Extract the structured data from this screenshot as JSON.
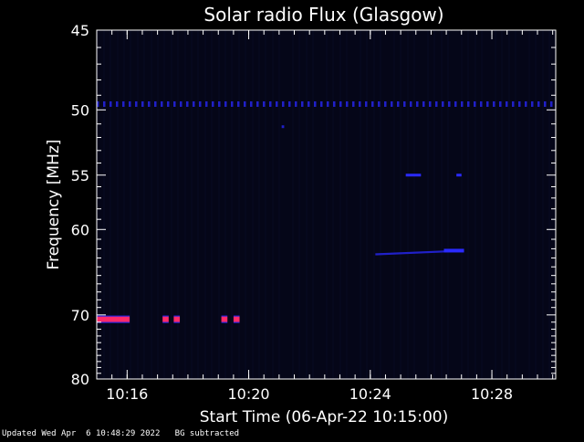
{
  "chart_data": {
    "type": "heatmap",
    "title": "Solar radio Flux (Glasgow)",
    "xlabel": "Start Time (06-Apr-22 10:15:00)",
    "ylabel": "Frequency [MHz]",
    "x_unit": "time (HH:MM)",
    "xlim": [
      "10:15:00",
      "10:30:06"
    ],
    "x_ticks": [
      "10:16",
      "10:20",
      "10:24",
      "10:28"
    ],
    "ylim": [
      45,
      80
    ],
    "y_ticks": [
      45,
      50,
      55,
      60,
      70,
      80
    ],
    "colors": {
      "background": "#000000",
      "plot_background": "#050618",
      "weak": "#2a2aff",
      "medium": "#2020c8",
      "strong": "#ff2a6a"
    },
    "features": [
      {
        "name": "RFI band",
        "time_start": "10:15:00",
        "time_end": "10:30:06",
        "freq_mhz": 49.6,
        "intensity": "medium"
      },
      {
        "name": "RFI spot",
        "time_start": "10:21:05",
        "time_end": "10:21:10",
        "freq_mhz": 51.2,
        "intensity": "medium"
      },
      {
        "name": "Band A",
        "time_start": "10:25:10",
        "time_end": "10:25:40",
        "freq_mhz": 55.0,
        "intensity": "weak"
      },
      {
        "name": "Band B",
        "time_start": "10:26:50",
        "time_end": "10:27:00",
        "freq_mhz": 55.0,
        "intensity": "weak"
      },
      {
        "name": "Drift",
        "time_start": "10:24:10",
        "time_end": "10:27:05",
        "freq_mhz_start": 62.6,
        "freq_mhz_end": 62.2,
        "intensity": "medium"
      },
      {
        "name": "Strong 1",
        "time_start": "10:15:00",
        "time_end": "10:16:05",
        "freq_mhz": 70.6,
        "intensity": "strong"
      },
      {
        "name": "Strong 2",
        "time_start": "10:17:10",
        "time_end": "10:17:22",
        "freq_mhz": 70.6,
        "intensity": "strong"
      },
      {
        "name": "Strong 3",
        "time_start": "10:17:32",
        "time_end": "10:17:44",
        "freq_mhz": 70.6,
        "intensity": "strong"
      },
      {
        "name": "Strong 4",
        "time_start": "10:19:06",
        "time_end": "10:19:18",
        "freq_mhz": 70.6,
        "intensity": "strong"
      },
      {
        "name": "Strong 5",
        "time_start": "10:19:30",
        "time_end": "10:19:42",
        "freq_mhz": 70.6,
        "intensity": "strong"
      }
    ]
  },
  "footer": {
    "updated": "Updated Wed Apr  6 10:48:29 2022",
    "note": "BG subtracted"
  }
}
